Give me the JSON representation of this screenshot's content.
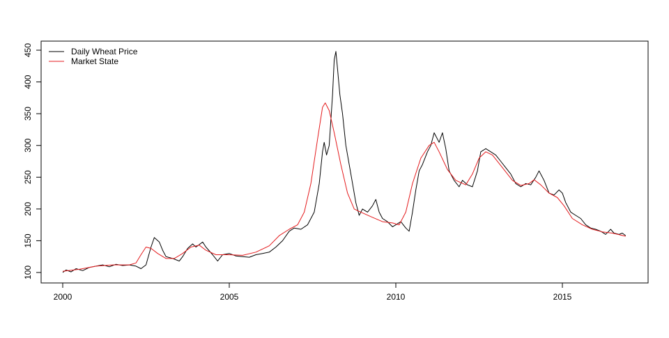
{
  "chart_data": {
    "type": "line",
    "title": "",
    "xlabel": "",
    "ylabel": "",
    "xlim": [
      2000,
      2017
    ],
    "ylim": [
      95,
      455
    ],
    "x_ticks": [
      2000,
      2005,
      2010,
      2015
    ],
    "y_ticks": [
      100,
      150,
      200,
      250,
      300,
      350,
      400,
      450
    ],
    "grid": false,
    "legend_position": "top-left",
    "series": [
      {
        "name": "Daily Wheat Price",
        "color": "#000000",
        "points": [
          [
            2000.0,
            100
          ],
          [
            2000.1,
            104
          ],
          [
            2000.25,
            101
          ],
          [
            2000.4,
            106
          ],
          [
            2000.6,
            103
          ],
          [
            2000.8,
            108
          ],
          [
            2001.0,
            110
          ],
          [
            2001.2,
            112
          ],
          [
            2001.4,
            109
          ],
          [
            2001.6,
            113
          ],
          [
            2001.8,
            111
          ],
          [
            2002.0,
            112
          ],
          [
            2002.2,
            110
          ],
          [
            2002.35,
            106
          ],
          [
            2002.5,
            112
          ],
          [
            2002.65,
            140
          ],
          [
            2002.75,
            155
          ],
          [
            2002.9,
            148
          ],
          [
            2003.0,
            135
          ],
          [
            2003.1,
            125
          ],
          [
            2003.3,
            122
          ],
          [
            2003.5,
            118
          ],
          [
            2003.6,
            125
          ],
          [
            2003.75,
            138
          ],
          [
            2003.9,
            145
          ],
          [
            2004.0,
            140
          ],
          [
            2004.2,
            148
          ],
          [
            2004.3,
            140
          ],
          [
            2004.5,
            128
          ],
          [
            2004.65,
            118
          ],
          [
            2004.8,
            128
          ],
          [
            2005.0,
            130
          ],
          [
            2005.2,
            126
          ],
          [
            2005.4,
            125
          ],
          [
            2005.6,
            124
          ],
          [
            2005.8,
            128
          ],
          [
            2006.0,
            130
          ],
          [
            2006.2,
            132
          ],
          [
            2006.4,
            140
          ],
          [
            2006.6,
            150
          ],
          [
            2006.8,
            165
          ],
          [
            2006.95,
            170
          ],
          [
            2007.15,
            168
          ],
          [
            2007.35,
            175
          ],
          [
            2007.55,
            195
          ],
          [
            2007.7,
            240
          ],
          [
            2007.8,
            290
          ],
          [
            2007.85,
            305
          ],
          [
            2007.92,
            285
          ],
          [
            2008.0,
            300
          ],
          [
            2008.05,
            340
          ],
          [
            2008.1,
            380
          ],
          [
            2008.15,
            435
          ],
          [
            2008.2,
            448
          ],
          [
            2008.25,
            420
          ],
          [
            2008.32,
            380
          ],
          [
            2008.4,
            350
          ],
          [
            2008.5,
            300
          ],
          [
            2008.6,
            270
          ],
          [
            2008.7,
            240
          ],
          [
            2008.8,
            210
          ],
          [
            2008.9,
            190
          ],
          [
            2009.0,
            200
          ],
          [
            2009.15,
            195
          ],
          [
            2009.3,
            205
          ],
          [
            2009.4,
            215
          ],
          [
            2009.5,
            195
          ],
          [
            2009.6,
            185
          ],
          [
            2009.75,
            180
          ],
          [
            2009.9,
            172
          ],
          [
            2010.0,
            175
          ],
          [
            2010.15,
            180
          ],
          [
            2010.3,
            170
          ],
          [
            2010.4,
            165
          ],
          [
            2010.5,
            195
          ],
          [
            2010.6,
            230
          ],
          [
            2010.7,
            260
          ],
          [
            2010.8,
            270
          ],
          [
            2010.95,
            290
          ],
          [
            2011.05,
            300
          ],
          [
            2011.15,
            320
          ],
          [
            2011.3,
            305
          ],
          [
            2011.4,
            320
          ],
          [
            2011.5,
            295
          ],
          [
            2011.6,
            260
          ],
          [
            2011.75,
            245
          ],
          [
            2011.9,
            235
          ],
          [
            2012.0,
            245
          ],
          [
            2012.15,
            238
          ],
          [
            2012.3,
            235
          ],
          [
            2012.45,
            260
          ],
          [
            2012.55,
            290
          ],
          [
            2012.7,
            295
          ],
          [
            2012.85,
            290
          ],
          [
            2013.0,
            285
          ],
          [
            2013.15,
            275
          ],
          [
            2013.3,
            265
          ],
          [
            2013.45,
            255
          ],
          [
            2013.6,
            240
          ],
          [
            2013.75,
            235
          ],
          [
            2013.9,
            240
          ],
          [
            2014.05,
            238
          ],
          [
            2014.2,
            250
          ],
          [
            2014.3,
            260
          ],
          [
            2014.45,
            245
          ],
          [
            2014.6,
            225
          ],
          [
            2014.75,
            222
          ],
          [
            2014.9,
            230
          ],
          [
            2015.0,
            225
          ],
          [
            2015.1,
            210
          ],
          [
            2015.25,
            195
          ],
          [
            2015.4,
            190
          ],
          [
            2015.55,
            185
          ],
          [
            2015.7,
            175
          ],
          [
            2015.85,
            170
          ],
          [
            2016.0,
            168
          ],
          [
            2016.15,
            165
          ],
          [
            2016.3,
            160
          ],
          [
            2016.45,
            168
          ],
          [
            2016.55,
            162
          ],
          [
            2016.7,
            160
          ],
          [
            2016.8,
            162
          ],
          [
            2016.9,
            158
          ]
        ]
      },
      {
        "name": "Market State",
        "color": "#e41a1c",
        "points": [
          [
            2000.0,
            102
          ],
          [
            2000.5,
            105
          ],
          [
            2001.0,
            110
          ],
          [
            2001.5,
            112
          ],
          [
            2002.0,
            112
          ],
          [
            2002.2,
            115
          ],
          [
            2002.35,
            128
          ],
          [
            2002.5,
            140
          ],
          [
            2002.65,
            138
          ],
          [
            2002.85,
            130
          ],
          [
            2003.1,
            122
          ],
          [
            2003.35,
            122
          ],
          [
            2003.6,
            130
          ],
          [
            2003.85,
            140
          ],
          [
            2004.1,
            143
          ],
          [
            2004.3,
            135
          ],
          [
            2004.6,
            128
          ],
          [
            2005.0,
            128
          ],
          [
            2005.4,
            127
          ],
          [
            2005.8,
            132
          ],
          [
            2006.2,
            142
          ],
          [
            2006.5,
            158
          ],
          [
            2006.8,
            168
          ],
          [
            2007.05,
            175
          ],
          [
            2007.25,
            195
          ],
          [
            2007.45,
            240
          ],
          [
            2007.65,
            310
          ],
          [
            2007.8,
            360
          ],
          [
            2007.88,
            367
          ],
          [
            2008.0,
            355
          ],
          [
            2008.15,
            320
          ],
          [
            2008.35,
            270
          ],
          [
            2008.55,
            225
          ],
          [
            2008.75,
            200
          ],
          [
            2008.95,
            195
          ],
          [
            2009.25,
            188
          ],
          [
            2009.6,
            180
          ],
          [
            2009.9,
            178
          ],
          [
            2010.1,
            175
          ],
          [
            2010.3,
            195
          ],
          [
            2010.5,
            240
          ],
          [
            2010.75,
            280
          ],
          [
            2011.0,
            300
          ],
          [
            2011.15,
            305
          ],
          [
            2011.3,
            290
          ],
          [
            2011.55,
            262
          ],
          [
            2011.8,
            245
          ],
          [
            2012.1,
            238
          ],
          [
            2012.3,
            255
          ],
          [
            2012.5,
            280
          ],
          [
            2012.7,
            290
          ],
          [
            2012.9,
            285
          ],
          [
            2013.2,
            265
          ],
          [
            2013.5,
            245
          ],
          [
            2013.75,
            237
          ],
          [
            2014.0,
            240
          ],
          [
            2014.15,
            246
          ],
          [
            2014.35,
            238
          ],
          [
            2014.6,
            225
          ],
          [
            2014.85,
            218
          ],
          [
            2015.05,
            205
          ],
          [
            2015.3,
            185
          ],
          [
            2015.6,
            175
          ],
          [
            2015.9,
            168
          ],
          [
            2016.2,
            164
          ],
          [
            2016.5,
            162
          ],
          [
            2016.9,
            157
          ]
        ]
      }
    ]
  }
}
